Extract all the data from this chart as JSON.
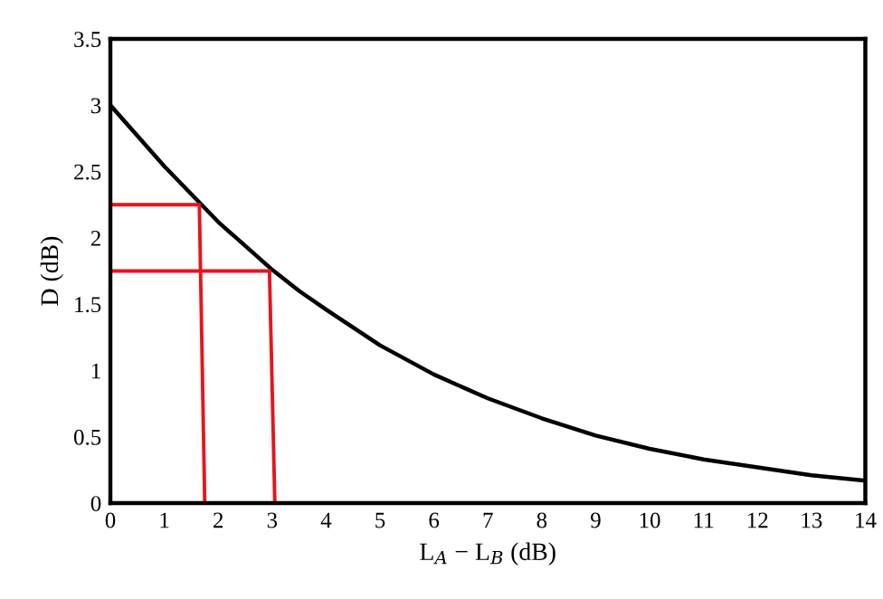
{
  "chart_data": {
    "type": "line",
    "xlabel": "L$_{A}$ − L$_{B}$ (dB)",
    "ylabel": "D (dB)",
    "xlim": [
      0,
      14
    ],
    "ylim": [
      0,
      3.5
    ],
    "xticks": [
      0,
      1,
      2,
      3,
      4,
      5,
      6,
      7,
      8,
      9,
      10,
      11,
      12,
      13,
      14
    ],
    "yticks": [
      0,
      0.5,
      1,
      1.5,
      2,
      2.5,
      3,
      3.5
    ],
    "grid": false,
    "marker": "none",
    "line_style": "solid",
    "series": [
      {
        "color": "#000000",
        "x": [
          0,
          0.5,
          1,
          1.5,
          2,
          2.5,
          3,
          3.5,
          4,
          5,
          6,
          7,
          8,
          9,
          10,
          11,
          12,
          13,
          14
        ],
        "values": [
          3.0,
          2.77,
          2.54,
          2.33,
          2.12,
          1.94,
          1.76,
          1.6,
          1.46,
          1.19,
          0.97,
          0.79,
          0.64,
          0.51,
          0.41,
          0.33,
          0.27,
          0.21,
          0.17
        ]
      },
      {
        "color": "#e8141c",
        "x": [
          0,
          1.65,
          1.75
        ],
        "values": [
          2.25,
          2.25,
          0
        ]
      },
      {
        "color": "#e8141c",
        "x": [
          0,
          2.95,
          3.05
        ],
        "values": [
          1.75,
          1.75,
          0
        ]
      }
    ]
  }
}
